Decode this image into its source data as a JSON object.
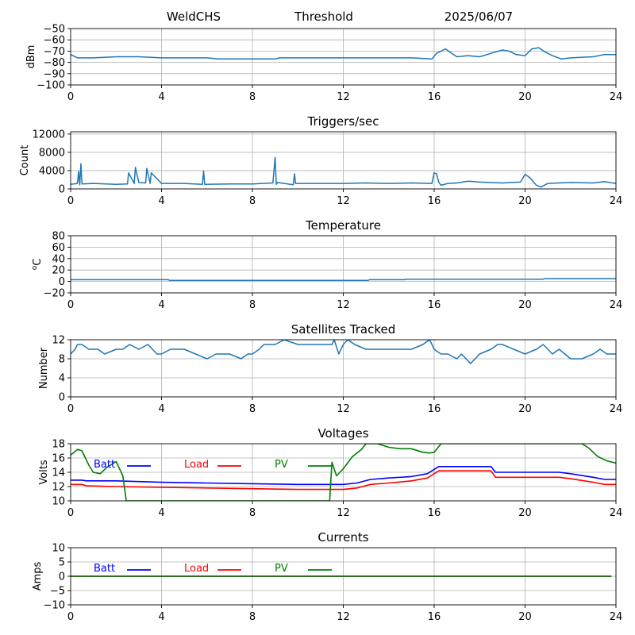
{
  "header": {
    "station": "WeldCHS",
    "label": "Threshold",
    "date": "2025/06/07"
  },
  "chart_data": [
    {
      "type": "line",
      "title": "",
      "ylabel": "dBm",
      "xlim": [
        0,
        24
      ],
      "ylim": [
        -100,
        -50
      ],
      "xticks": [
        0,
        4,
        8,
        12,
        16,
        20,
        24
      ],
      "yticks": [
        -100,
        -90,
        -80,
        -70,
        -60,
        -50
      ],
      "grid": true,
      "series": [
        {
          "color": "#1f77b4",
          "x": [
            0,
            0.3,
            0.6,
            1,
            2,
            3,
            4,
            5,
            6,
            6.5,
            7,
            8,
            9,
            9.2,
            10,
            11,
            12,
            13,
            14,
            15,
            15.9,
            16.1,
            16.3,
            16.5,
            16.7,
            17,
            17.5,
            18,
            18.5,
            19,
            19.3,
            19.6,
            20,
            20.3,
            20.6,
            20.9,
            21.2,
            21.6,
            22,
            23,
            23.5,
            24
          ],
          "y": [
            -73,
            -76,
            -76,
            -76,
            -75,
            -75,
            -76,
            -76,
            -76,
            -77,
            -77,
            -77,
            -77,
            -76,
            -76,
            -76,
            -76,
            -76,
            -76,
            -76,
            -77,
            -72,
            -70,
            -68,
            -71,
            -75,
            -74,
            -75,
            -72,
            -69,
            -70,
            -73,
            -74,
            -68,
            -67,
            -71,
            -74,
            -77,
            -76,
            -75,
            -73,
            -73
          ]
        }
      ]
    },
    {
      "type": "line",
      "title": "Triggers/sec",
      "ylabel": "Count",
      "xlim": [
        0,
        24
      ],
      "ylim": [
        0,
        12500
      ],
      "xticks": [
        0,
        4,
        8,
        12,
        16,
        20,
        24
      ],
      "yticks": [
        0,
        4000,
        8000,
        12000
      ],
      "grid": true,
      "series": [
        {
          "color": "#1f77b4",
          "x": [
            0,
            0.3,
            0.35,
            0.4,
            0.45,
            0.5,
            1,
            2,
            2.5,
            2.55,
            2.8,
            2.85,
            3,
            3.3,
            3.35,
            3.5,
            3.55,
            4,
            5,
            5.8,
            5.85,
            5.9,
            7,
            8,
            8.9,
            9.0,
            9.05,
            9.1,
            9.8,
            9.85,
            9.9,
            11,
            12,
            13,
            14,
            15,
            15.9,
            16.0,
            16.1,
            16.2,
            16.3,
            16.6,
            17,
            17.5,
            18,
            19,
            19.8,
            20.0,
            20.2,
            20.5,
            20.7,
            21,
            22,
            23,
            23.5,
            24
          ],
          "y": [
            1000,
            1200,
            3800,
            900,
            5500,
            1100,
            1200,
            1000,
            1100,
            3500,
            1200,
            4700,
            1400,
            1300,
            4500,
            1200,
            3500,
            1200,
            1200,
            1000,
            3900,
            1000,
            1100,
            1100,
            1300,
            6900,
            1000,
            1400,
            900,
            3300,
            1200,
            1200,
            1200,
            1300,
            1200,
            1300,
            1200,
            3500,
            3300,
            1500,
            800,
            1200,
            1300,
            1700,
            1500,
            1300,
            1500,
            3200,
            2500,
            800,
            400,
            1200,
            1400,
            1300,
            1600,
            1200
          ]
        }
      ]
    },
    {
      "type": "line",
      "title": "Temperature",
      "ylabel": "°C",
      "ylabel_super": "o",
      "ylabel_main": "C",
      "xlim": [
        0,
        24
      ],
      "ylim": [
        -20,
        80
      ],
      "xticks": [
        0,
        4,
        8,
        12,
        16,
        20,
        24
      ],
      "yticks": [
        -20,
        0,
        20,
        40,
        60,
        80
      ],
      "grid": true,
      "series": [
        {
          "color": "#1f77b4",
          "x": [
            0,
            4.3,
            4.35,
            13.1,
            13.15,
            14.7,
            14.75,
            20.8,
            20.85,
            24
          ],
          "y": [
            3,
            3,
            2,
            2,
            3,
            3,
            4,
            4,
            5,
            5
          ]
        }
      ]
    },
    {
      "type": "line",
      "title": "Satellites Tracked",
      "ylabel": "Number",
      "xlim": [
        0,
        24
      ],
      "ylim": [
        0,
        12
      ],
      "xticks": [
        0,
        4,
        8,
        12,
        16,
        20,
        24
      ],
      "yticks": [
        0,
        4,
        8,
        12
      ],
      "grid": true,
      "series": [
        {
          "color": "#1f77b4",
          "x": [
            0,
            0.2,
            0.3,
            0.5,
            0.8,
            1.2,
            1.5,
            2,
            2.3,
            2.6,
            3,
            3.4,
            3.8,
            4,
            4.4,
            5,
            5.5,
            6,
            6.4,
            7,
            7.5,
            7.8,
            8,
            8.3,
            8.5,
            9,
            9.4,
            10,
            10.5,
            11,
            11.5,
            11.6,
            11.8,
            12,
            12.2,
            12.5,
            13,
            13.5,
            14,
            14.5,
            15,
            15.5,
            15.8,
            16,
            16.3,
            16.6,
            17,
            17.2,
            17.6,
            18,
            18.5,
            18.8,
            19,
            19.5,
            20,
            20.5,
            20.8,
            21.2,
            21.5,
            22,
            22.5,
            23,
            23.3,
            23.6,
            24
          ],
          "y": [
            9,
            10,
            11,
            11,
            10,
            10,
            9,
            10,
            10,
            11,
            10,
            11,
            9,
            9,
            10,
            10,
            9,
            8,
            9,
            9,
            8,
            9,
            9,
            10,
            11,
            11,
            12,
            11,
            11,
            11,
            11,
            12,
            9,
            11,
            12,
            11,
            10,
            10,
            10,
            10,
            10,
            11,
            12,
            10,
            9,
            9,
            8,
            9,
            7,
            9,
            10,
            11,
            11,
            10,
            9,
            10,
            11,
            9,
            10,
            8,
            8,
            9,
            10,
            9,
            9
          ]
        }
      ]
    },
    {
      "type": "line",
      "title": "Voltages",
      "ylabel": "Volts",
      "xlim": [
        0,
        24
      ],
      "ylim": [
        10,
        18
      ],
      "xticks": [
        0,
        4,
        8,
        12,
        16,
        20,
        24
      ],
      "yticks": [
        10,
        12,
        14,
        16,
        18
      ],
      "grid": true,
      "legend_placement": "top-left",
      "series": [
        {
          "name": "Batt",
          "color": "#0000ff",
          "x": [
            0,
            0.5,
            0.7,
            2,
            4,
            6,
            8,
            10,
            12,
            12.6,
            13.2,
            14,
            15,
            15.7,
            16.2,
            18.5,
            18.7,
            20,
            21.5,
            22,
            23,
            23.5,
            24
          ],
          "y": [
            12.9,
            12.9,
            12.8,
            12.8,
            12.6,
            12.5,
            12.4,
            12.3,
            12.3,
            12.5,
            13.0,
            13.2,
            13.4,
            13.8,
            14.8,
            14.8,
            14.0,
            14.0,
            14.0,
            13.8,
            13.3,
            13.0,
            13.0
          ]
        },
        {
          "name": "Load",
          "color": "#ff0000",
          "x": [
            0,
            0.5,
            0.7,
            2,
            4,
            6,
            8,
            10,
            12,
            12.6,
            13.2,
            14,
            15,
            15.7,
            16.2,
            18.5,
            18.7,
            20,
            21.5,
            22,
            23,
            23.5,
            24
          ],
          "y": [
            12.3,
            12.3,
            12.1,
            12.0,
            11.9,
            11.8,
            11.7,
            11.6,
            11.6,
            11.8,
            12.3,
            12.5,
            12.8,
            13.2,
            14.2,
            14.2,
            13.3,
            13.3,
            13.3,
            13.1,
            12.6,
            12.3,
            12.3
          ]
        },
        {
          "name": "PV",
          "color": "#008000",
          "x": [
            0,
            0.3,
            0.5,
            0.8,
            1.0,
            1.3,
            1.6,
            2.0,
            2.3,
            2.45,
            11.4,
            11.5,
            11.7,
            12.0,
            12.4,
            12.8,
            13.0,
            13.5,
            14.0,
            14.5,
            15.0,
            15.5,
            15.8,
            16.0,
            16.3,
            22.5,
            22.8,
            23.2,
            23.6,
            24
          ],
          "y": [
            16.4,
            17.2,
            17.0,
            15.0,
            14.0,
            13.8,
            14.7,
            15.5,
            13.5,
            10.0,
            10.0,
            15.4,
            13.5,
            14.5,
            16.2,
            17.2,
            18.0,
            18.0,
            17.5,
            17.3,
            17.3,
            16.8,
            16.7,
            16.8,
            18.0,
            18.0,
            17.4,
            16.2,
            15.6,
            15.3
          ]
        }
      ]
    },
    {
      "type": "line",
      "title": "Currents",
      "ylabel": "Amps",
      "xlim": [
        0,
        24
      ],
      "ylim": [
        -10,
        10
      ],
      "xticks": [
        0,
        4,
        8,
        12,
        16,
        20,
        24
      ],
      "yticks": [
        -10,
        -5,
        0,
        5,
        10
      ],
      "grid": true,
      "legend_placement": "top-left",
      "series": [
        {
          "name": "Batt",
          "color": "#0000ff",
          "x": [
            0,
            23.8
          ],
          "y": [
            0,
            0
          ]
        },
        {
          "name": "Load",
          "color": "#ff0000",
          "x": [
            0,
            23.8
          ],
          "y": [
            0,
            0
          ]
        },
        {
          "name": "PV",
          "color": "#008000",
          "x": [
            0,
            23.8
          ],
          "y": [
            0,
            0
          ]
        }
      ]
    }
  ]
}
